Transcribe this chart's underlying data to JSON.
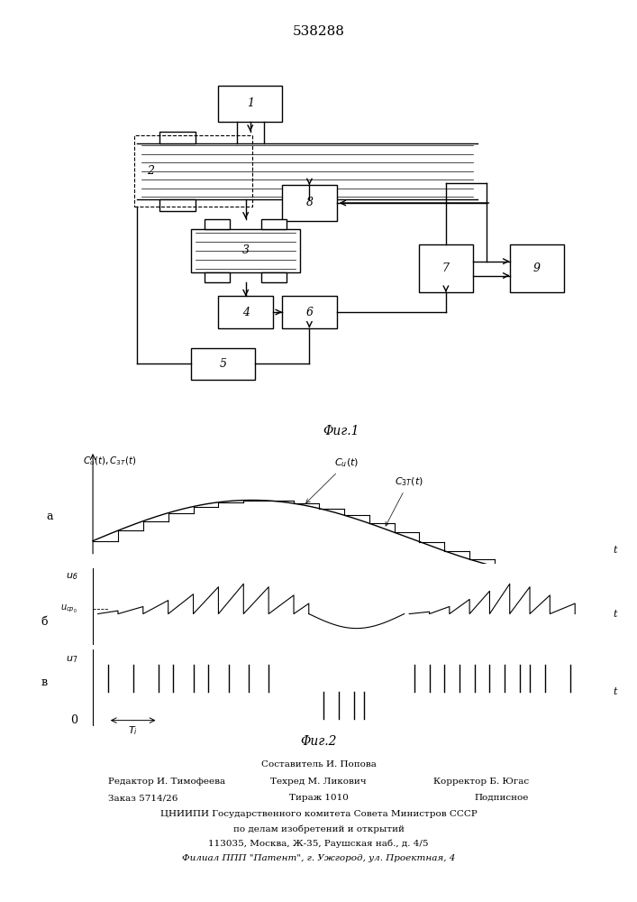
{
  "title": "538288",
  "title_fontsize": 11,
  "fig1_caption": "Φиг.1",
  "fig2_caption": "Φиг.2",
  "footer_line0": "Составитель И. Попова",
  "footer_line1": "Редактор И. Тимофеева",
  "footer_line1b": "Техред М. Ликович",
  "footer_line1c": "Корректор Б. Югас",
  "footer_line2a": "Заказ 5714/26",
  "footer_line2b": "Тираж 1010",
  "footer_line2c": "Подписное",
  "footer_line3": "ЦНИИПИ Государственного комитета Совета Министров СССР",
  "footer_line4": "по делам изобретений и открытий",
  "footer_line5": "113035, Москва, Ж-35, Раушская наб., д. 4/5",
  "footer_line6": "Филиал ППП \"Патент\", г. Ужгород, ул. Проектная, 4",
  "bg_color": "#ffffff",
  "lc": "#000000"
}
